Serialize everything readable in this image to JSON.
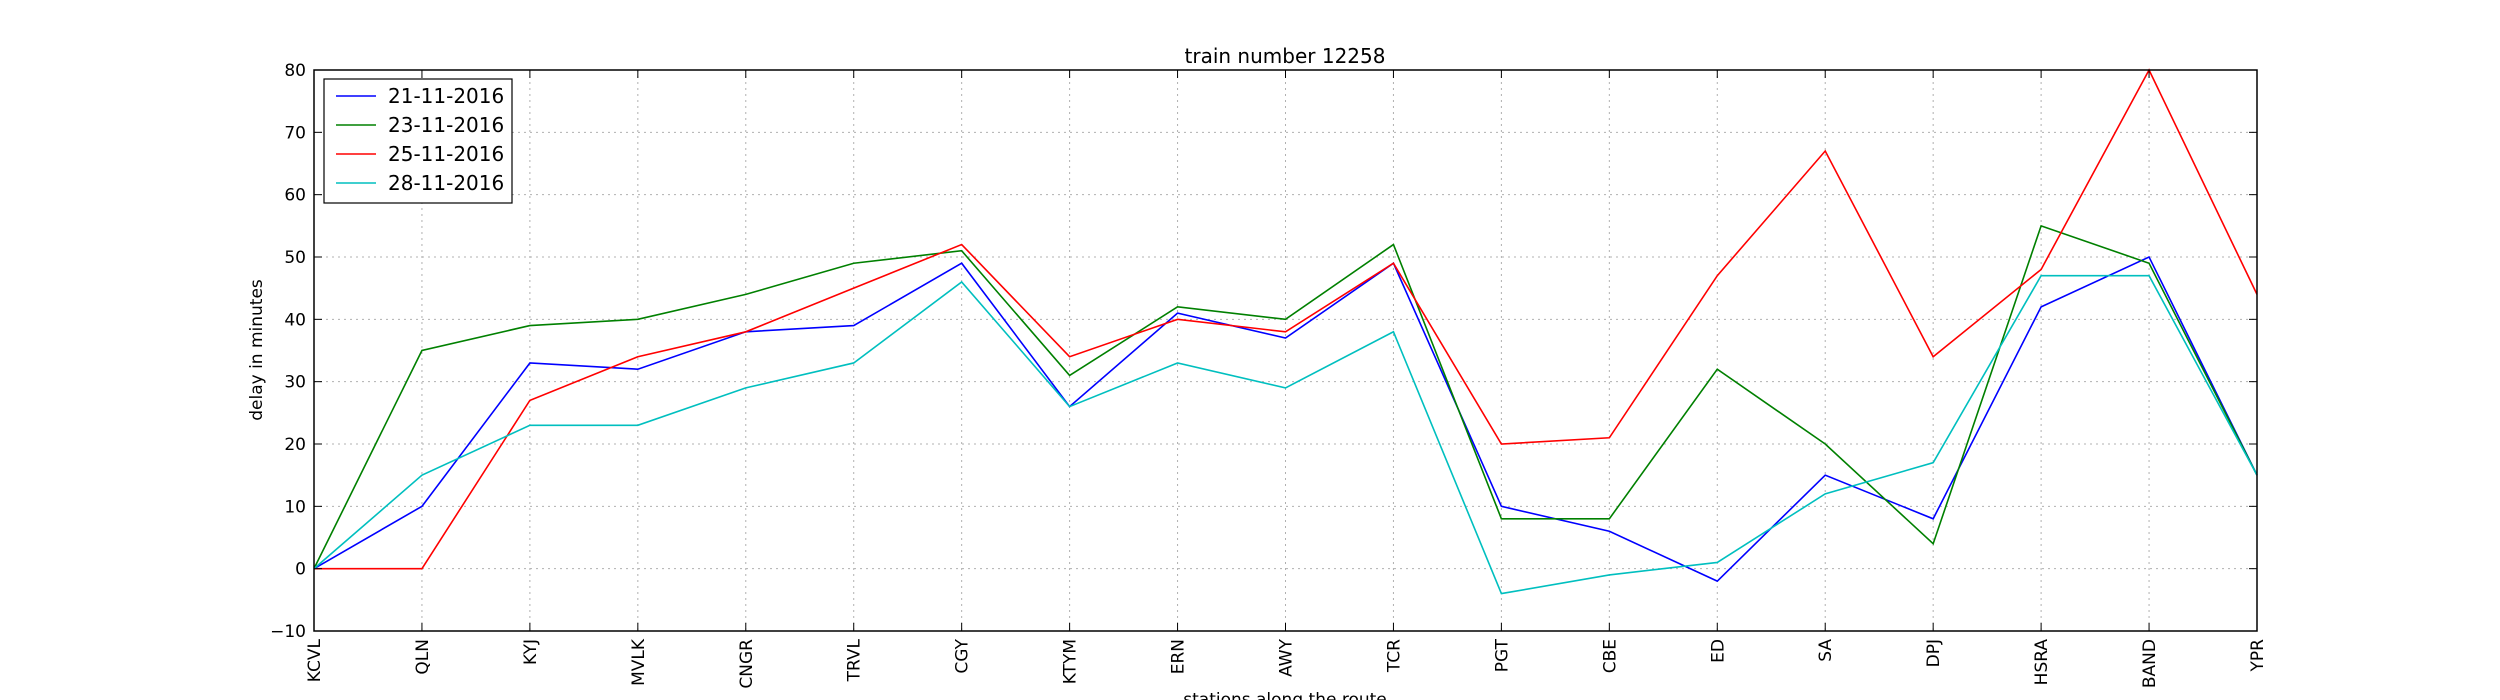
{
  "chart_data": {
    "type": "line",
    "title": "train number 12258",
    "xlabel": "stations along the route",
    "ylabel": "delay in minutes",
    "categories": [
      "KCVL",
      "QLN",
      "KYJ",
      "MVLK",
      "CNGR",
      "TRVL",
      "CGY",
      "KTYM",
      "ERN",
      "AWY",
      "TCR",
      "PGT",
      "CBE",
      "ED",
      "SA",
      "DPJ",
      "HSRA",
      "BAND",
      "YPR"
    ],
    "ylim": [
      -10,
      80
    ],
    "yticks": [
      -10,
      0,
      10,
      20,
      30,
      40,
      50,
      60,
      70,
      80
    ],
    "yticklabels": [
      "−10",
      "0",
      "10",
      "20",
      "30",
      "40",
      "50",
      "60",
      "70",
      "80"
    ],
    "grid": true,
    "legend_position": "top-left",
    "series": [
      {
        "name": "21-11-2016",
        "color": "#0000ff",
        "values": [
          0,
          10,
          33,
          32,
          38,
          39,
          49,
          26,
          41,
          37,
          49,
          10,
          6,
          -2,
          15,
          8,
          42,
          50,
          15
        ]
      },
      {
        "name": "23-11-2016",
        "color": "#008000",
        "values": [
          0,
          35,
          39,
          40,
          44,
          49,
          51,
          31,
          42,
          40,
          52,
          8,
          8,
          32,
          20,
          4,
          55,
          49,
          15
        ]
      },
      {
        "name": "25-11-2016",
        "color": "#ff0000",
        "values": [
          0,
          0,
          27,
          34,
          38,
          45,
          52,
          34,
          40,
          38,
          49,
          20,
          21,
          47,
          67,
          34,
          48,
          80,
          44
        ]
      },
      {
        "name": "28-11-2016",
        "color": "#00bfbf",
        "values": [
          0,
          15,
          23,
          23,
          29,
          33,
          46,
          26,
          33,
          29,
          38,
          -4,
          -1,
          1,
          12,
          17,
          47,
          47,
          15
        ]
      }
    ]
  }
}
